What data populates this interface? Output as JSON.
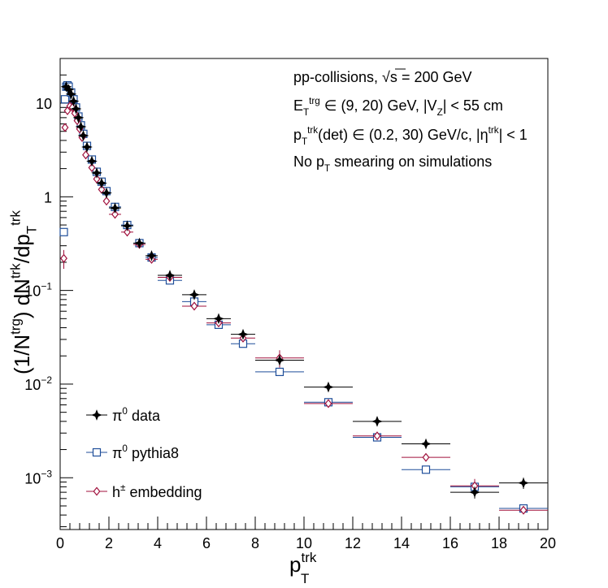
{
  "chart_data": {
    "type": "scatter",
    "xlabel": {
      "base": "p",
      "sub": "T",
      "sup": "trk"
    },
    "ylabel": {
      "parts": [
        {
          "t": "(1/N",
          "s": "n"
        },
        {
          "t": "trg",
          "s": "sup"
        },
        {
          "t": ") dN",
          "s": "n"
        },
        {
          "t": "trk",
          "s": "sup"
        },
        {
          "t": "/dp",
          "s": "n"
        },
        {
          "t": "T",
          "s": "sub"
        },
        {
          "t": "trk",
          "s": "sup"
        }
      ]
    },
    "xlim": [
      0,
      20
    ],
    "ylim": [
      0.00028,
      30
    ],
    "yscale": "log",
    "xticks": [
      {
        "v": 0,
        "label": "0"
      },
      {
        "v": 2,
        "label": "2"
      },
      {
        "v": 4,
        "label": "4"
      },
      {
        "v": 6,
        "label": "6"
      },
      {
        "v": 8,
        "label": "8"
      },
      {
        "v": 10,
        "label": "10"
      },
      {
        "v": 12,
        "label": "12"
      },
      {
        "v": 14,
        "label": "14"
      },
      {
        "v": 16,
        "label": "16"
      },
      {
        "v": 18,
        "label": "18"
      },
      {
        "v": 20,
        "label": "20"
      }
    ],
    "yticks": [
      {
        "v": 10,
        "base": "10",
        "exp": ""
      },
      {
        "v": 1,
        "base": "1",
        "exp": ""
      },
      {
        "v": 0.1,
        "base": "10",
        "exp": "−1"
      },
      {
        "v": 0.01,
        "base": "10",
        "exp": "−2"
      },
      {
        "v": 0.001,
        "base": "10",
        "exp": "−3"
      }
    ],
    "annotations": [
      {
        "parts": [
          {
            "t": "pp-collisions, ",
            "s": "n"
          },
          {
            "t": "√s",
            "s": "n"
          },
          {
            "t": " = 200 GeV",
            "s": "n"
          }
        ]
      },
      {
        "parts": [
          {
            "t": "E",
            "s": "n"
          },
          {
            "t": "T",
            "s": "sub"
          },
          {
            "t": "trg",
            "s": "sup"
          },
          {
            "t": " ∈ (9, 20) GeV, |V",
            "s": "n"
          },
          {
            "t": "Z",
            "s": "sub"
          },
          {
            "t": "| < 55 cm",
            "s": "n"
          }
        ]
      },
      {
        "parts": [
          {
            "t": "p",
            "s": "n"
          },
          {
            "t": "T",
            "s": "sub"
          },
          {
            "t": "trk",
            "s": "sup"
          },
          {
            "t": "(det) ∈ (0.2, 30) GeV/c, |η",
            "s": "n"
          },
          {
            "t": "trk",
            "s": "sup"
          },
          {
            "t": "| < 1",
            "s": "n"
          }
        ]
      },
      {
        "parts": [
          {
            "t": "No p",
            "s": "n"
          },
          {
            "t": "T",
            "s": "sub"
          },
          {
            "t": " smearing on simulations",
            "s": "n"
          }
        ]
      }
    ],
    "legend": [
      {
        "parts": [
          {
            "t": "π",
            "s": "n"
          },
          {
            "t": "0",
            "s": "sup"
          },
          {
            "t": " data",
            "s": "n"
          }
        ]
      },
      {
        "parts": [
          {
            "t": "π",
            "s": "n"
          },
          {
            "t": "0",
            "s": "sup"
          },
          {
            "t": " pythia8",
            "s": "n"
          }
        ]
      },
      {
        "parts": [
          {
            "t": "h",
            "s": "n"
          },
          {
            "t": "±",
            "s": "sup"
          },
          {
            "t": " embedding",
            "s": "n"
          }
        ]
      }
    ],
    "legend_position": "bottom-left",
    "series": [
      {
        "name": "π0 data",
        "color": "#000000",
        "marker": "star",
        "points": [
          {
            "x": 0.25,
            "y": 15.0,
            "xe": 0.05
          },
          {
            "x": 0.35,
            "y": 14.0,
            "xe": 0.05
          },
          {
            "x": 0.45,
            "y": 12.5,
            "xe": 0.05
          },
          {
            "x": 0.55,
            "y": 10.5,
            "xe": 0.05
          },
          {
            "x": 0.65,
            "y": 8.7,
            "xe": 0.05
          },
          {
            "x": 0.75,
            "y": 7.0,
            "xe": 0.05
          },
          {
            "x": 0.85,
            "y": 5.6,
            "xe": 0.05
          },
          {
            "x": 0.95,
            "y": 4.5,
            "xe": 0.05
          },
          {
            "x": 1.1,
            "y": 3.4,
            "xe": 0.1
          },
          {
            "x": 1.3,
            "y": 2.4,
            "xe": 0.1
          },
          {
            "x": 1.5,
            "y": 1.8,
            "xe": 0.1
          },
          {
            "x": 1.7,
            "y": 1.4,
            "xe": 0.1
          },
          {
            "x": 1.9,
            "y": 1.1,
            "xe": 0.1
          },
          {
            "x": 2.25,
            "y": 0.76,
            "xe": 0.25
          },
          {
            "x": 2.75,
            "y": 0.49,
            "xe": 0.25
          },
          {
            "x": 3.25,
            "y": 0.32,
            "xe": 0.25
          },
          {
            "x": 3.75,
            "y": 0.235,
            "xe": 0.25
          },
          {
            "x": 4.5,
            "y": 0.145,
            "xe": 0.5
          },
          {
            "x": 5.5,
            "y": 0.09,
            "xe": 0.5
          },
          {
            "x": 6.5,
            "y": 0.05,
            "xe": 0.5
          },
          {
            "x": 7.5,
            "y": 0.034,
            "xe": 0.5
          },
          {
            "x": 9.0,
            "y": 0.018,
            "xe": 1.0
          },
          {
            "x": 11.0,
            "y": 0.0093,
            "xe": 1.0
          },
          {
            "x": 13.0,
            "y": 0.004,
            "xe": 1.0
          },
          {
            "x": 15.0,
            "y": 0.0023,
            "xe": 1.0
          },
          {
            "x": 17.0,
            "y": 0.0007,
            "xe": 1.0,
            "ye": 0.0001
          },
          {
            "x": 19.0,
            "y": 0.00088,
            "xe": 1.0,
            "ye": 0.00012
          }
        ]
      },
      {
        "name": "π0 pythia8",
        "color": "#1f4e9a",
        "marker": "square",
        "points": [
          {
            "x": 0.15,
            "y": 0.42,
            "xe": 0.05
          },
          {
            "x": 0.2,
            "y": 11.0,
            "xe": 0.05
          },
          {
            "x": 0.25,
            "y": 15.0,
            "xe": 0.05
          },
          {
            "x": 0.3,
            "y": 15.5,
            "xe": 0.05
          },
          {
            "x": 0.35,
            "y": 15.0,
            "xe": 0.05
          },
          {
            "x": 0.45,
            "y": 13.0,
            "xe": 0.05
          },
          {
            "x": 0.55,
            "y": 11.0,
            "xe": 0.05
          },
          {
            "x": 0.65,
            "y": 9.0,
            "xe": 0.05
          },
          {
            "x": 0.75,
            "y": 7.2,
            "xe": 0.05
          },
          {
            "x": 0.85,
            "y": 5.8,
            "xe": 0.05
          },
          {
            "x": 0.95,
            "y": 4.7,
            "xe": 0.05
          },
          {
            "x": 1.1,
            "y": 3.5,
            "xe": 0.1
          },
          {
            "x": 1.3,
            "y": 2.5,
            "xe": 0.1
          },
          {
            "x": 1.5,
            "y": 1.85,
            "xe": 0.1
          },
          {
            "x": 1.7,
            "y": 1.45,
            "xe": 0.1
          },
          {
            "x": 1.9,
            "y": 1.15,
            "xe": 0.1
          },
          {
            "x": 2.25,
            "y": 0.78,
            "xe": 0.25
          },
          {
            "x": 2.75,
            "y": 0.5,
            "xe": 0.25
          },
          {
            "x": 3.25,
            "y": 0.32,
            "xe": 0.25
          },
          {
            "x": 3.75,
            "y": 0.225,
            "xe": 0.25
          },
          {
            "x": 4.5,
            "y": 0.128,
            "xe": 0.5
          },
          {
            "x": 5.5,
            "y": 0.076,
            "xe": 0.5
          },
          {
            "x": 6.5,
            "y": 0.043,
            "xe": 0.5
          },
          {
            "x": 7.5,
            "y": 0.027,
            "xe": 0.5
          },
          {
            "x": 9.0,
            "y": 0.0135,
            "xe": 1.0
          },
          {
            "x": 11.0,
            "y": 0.0064,
            "xe": 1.0
          },
          {
            "x": 13.0,
            "y": 0.0027,
            "xe": 1.0
          },
          {
            "x": 15.0,
            "y": 0.00122,
            "xe": 1.0
          },
          {
            "x": 17.0,
            "y": 0.0008,
            "xe": 1.0
          },
          {
            "x": 19.0,
            "y": 0.00047,
            "xe": 1.0
          }
        ]
      },
      {
        "name": "h± embedding",
        "color": "#a0103c",
        "marker": "diamond",
        "points": [
          {
            "x": 0.15,
            "y": 0.22,
            "xe": 0.05,
            "ye": 0.05
          },
          {
            "x": 0.2,
            "y": 5.5,
            "xe": 0.05
          },
          {
            "x": 0.3,
            "y": 8.3,
            "xe": 0.05
          },
          {
            "x": 0.4,
            "y": 9.3,
            "xe": 0.05
          },
          {
            "x": 0.5,
            "y": 9.0,
            "xe": 0.05
          },
          {
            "x": 0.6,
            "y": 7.8,
            "xe": 0.05
          },
          {
            "x": 0.7,
            "y": 6.5,
            "xe": 0.05
          },
          {
            "x": 0.8,
            "y": 5.3,
            "xe": 0.05
          },
          {
            "x": 0.9,
            "y": 4.3,
            "xe": 0.05
          },
          {
            "x": 1.05,
            "y": 2.8,
            "xe": 0.1
          },
          {
            "x": 1.3,
            "y": 2.05,
            "xe": 0.1
          },
          {
            "x": 1.5,
            "y": 1.55,
            "xe": 0.1
          },
          {
            "x": 1.7,
            "y": 1.2,
            "xe": 0.1
          },
          {
            "x": 1.9,
            "y": 0.9,
            "xe": 0.1
          },
          {
            "x": 2.25,
            "y": 0.65,
            "xe": 0.25
          },
          {
            "x": 2.75,
            "y": 0.42,
            "xe": 0.25
          },
          {
            "x": 3.25,
            "y": 0.31,
            "xe": 0.25
          },
          {
            "x": 3.75,
            "y": 0.215,
            "xe": 0.25
          },
          {
            "x": 4.5,
            "y": 0.138,
            "xe": 0.5
          },
          {
            "x": 5.5,
            "y": 0.068,
            "xe": 0.5
          },
          {
            "x": 6.5,
            "y": 0.045,
            "xe": 0.5
          },
          {
            "x": 7.5,
            "y": 0.031,
            "xe": 0.5
          },
          {
            "x": 9.0,
            "y": 0.019,
            "xe": 1.0,
            "ye": 0.004
          },
          {
            "x": 11.0,
            "y": 0.0062,
            "xe": 1.0
          },
          {
            "x": 13.0,
            "y": 0.0028,
            "xe": 1.0
          },
          {
            "x": 15.0,
            "y": 0.00165,
            "xe": 1.0
          },
          {
            "x": 17.0,
            "y": 0.00082,
            "xe": 1.0,
            "ye": 0.00015
          },
          {
            "x": 19.0,
            "y": 0.00045,
            "xe": 1.0
          }
        ]
      }
    ]
  }
}
